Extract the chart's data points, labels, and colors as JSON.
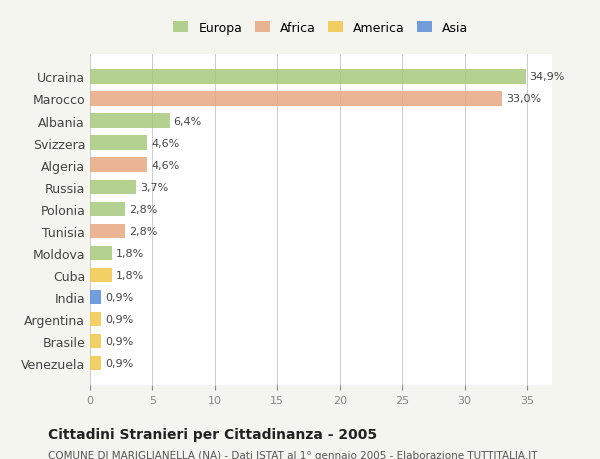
{
  "countries": [
    "Ucraina",
    "Marocco",
    "Albania",
    "Svizzera",
    "Algeria",
    "Russia",
    "Polonia",
    "Tunisia",
    "Moldova",
    "Cuba",
    "India",
    "Argentina",
    "Brasile",
    "Venezuela"
  ],
  "values": [
    34.9,
    33.0,
    6.4,
    4.6,
    4.6,
    3.7,
    2.8,
    2.8,
    1.8,
    1.8,
    0.9,
    0.9,
    0.9,
    0.9
  ],
  "labels": [
    "34,9%",
    "33,0%",
    "6,4%",
    "4,6%",
    "4,6%",
    "3,7%",
    "2,8%",
    "2,8%",
    "1,8%",
    "1,8%",
    "0,9%",
    "0,9%",
    "0,9%",
    "0,9%"
  ],
  "continents": [
    "Europa",
    "Africa",
    "Europa",
    "Europa",
    "Africa",
    "Europa",
    "Europa",
    "Africa",
    "Europa",
    "America",
    "Asia",
    "America",
    "America",
    "America"
  ],
  "colors": {
    "Europa": "#a8c97f",
    "Africa": "#e8a882",
    "America": "#f0c84a",
    "Asia": "#5b8dd9"
  },
  "legend_order": [
    "Europa",
    "Africa",
    "America",
    "Asia"
  ],
  "bg_color": "#f5f5f0",
  "bar_bg_color": "#ffffff",
  "title": "Cittadini Stranieri per Cittadinanza - 2005",
  "subtitle": "COMUNE DI MARIGLIANELLA (NA) - Dati ISTAT al 1° gennaio 2005 - Elaborazione TUTTITALIA.IT",
  "xlim": [
    0,
    37
  ],
  "xticks": [
    0,
    5,
    10,
    15,
    20,
    25,
    30,
    35
  ]
}
